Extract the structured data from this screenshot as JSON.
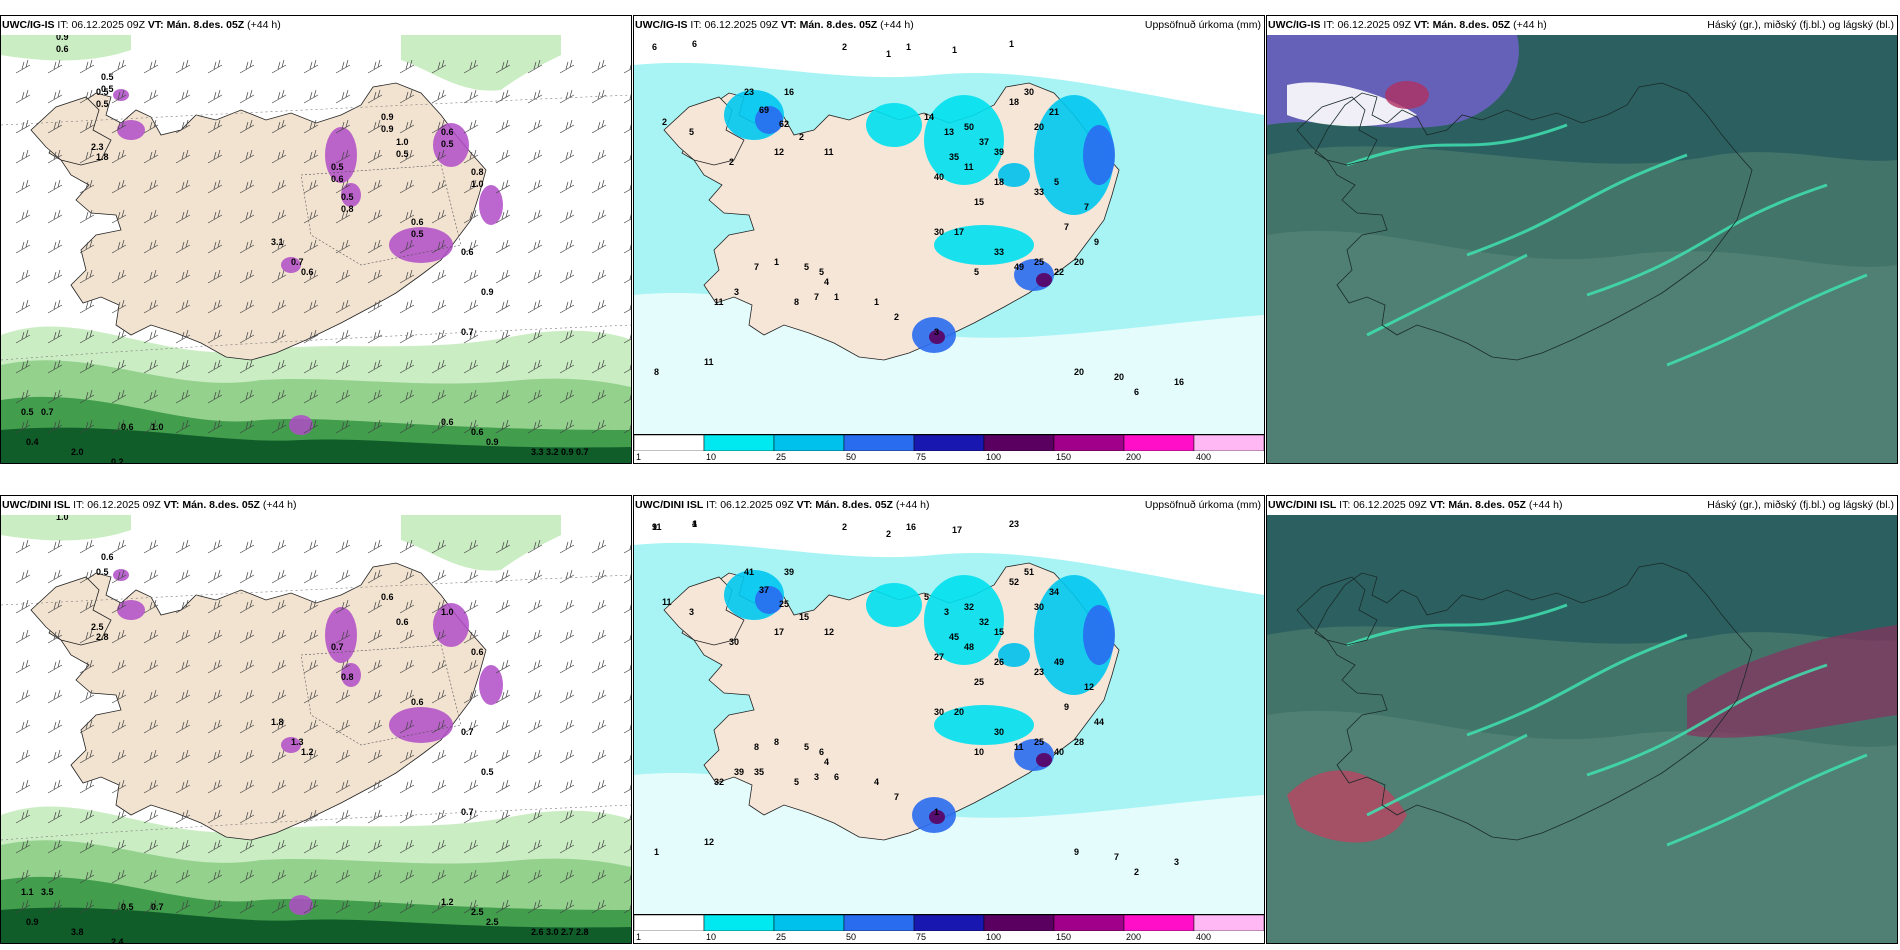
{
  "panels": {
    "ig_wind": {
      "model": "UWC/IG-IS",
      "it_label": "IT:",
      "it_value": "06.12.2025 09Z",
      "vt_label": "VT:",
      "vt_value": "Mán. 8.des. 05Z",
      "lead": "(+44 h)",
      "right_title": ""
    },
    "ig_precip": {
      "model": "UWC/IG-IS",
      "it_label": "IT:",
      "it_value": "06.12.2025 09Z",
      "vt_label": "VT:",
      "vt_value": "Mán. 8.des. 05Z",
      "lead": "(+44 h)",
      "right_title": "Uppsöfnuð úrkoma (mm)"
    },
    "ig_cloud": {
      "model": "UWC/IG-IS",
      "it_label": "IT:",
      "it_value": "06.12.2025 09Z",
      "vt_label": "VT:",
      "vt_value": "Mán. 8.des. 05Z",
      "lead": "(+44 h)",
      "right_title": "Háský (gr.), miðský (fj.bl.) og lágský (bl.)"
    },
    "dini_wind": {
      "model": "UWC/DINI ISL",
      "it_label": "IT:",
      "it_value": "06.12.2025 09Z",
      "vt_label": "VT:",
      "vt_value": "Mán. 8.des. 05Z",
      "lead": "(+44 h)",
      "right_title": ""
    },
    "dini_precip": {
      "model": "UWC/DINI ISL",
      "it_label": "IT:",
      "it_value": "06.12.2025 09Z",
      "vt_label": "VT:",
      "vt_value": "Mán. 8.des. 05Z",
      "lead": "(+44 h)",
      "right_title": "Uppsöfnuð úrkoma (mm)"
    },
    "dini_cloud": {
      "model": "UWC/DINI ISL",
      "it_label": "IT:",
      "it_value": "06.12.2025 09Z",
      "vt_label": "VT:",
      "vt_value": "Mán. 8.des. 05Z",
      "lead": "(+44 h)",
      "right_title": "Háský (gr.), miðský (fj.bl.) og lágský (bl.)"
    }
  },
  "precip_colorbar": {
    "colors": [
      "#ffffff",
      "#00e8f0",
      "#00c0ec",
      "#2a6cf0",
      "#1818b0",
      "#5a0060",
      "#a0008a",
      "#ff10c8",
      "#ffb8f4"
    ],
    "ticks": [
      "1",
      "10",
      "25",
      "50",
      "75",
      "100",
      "150",
      "200",
      "400"
    ]
  },
  "wind_labels_ig": [
    "0.9",
    "0.5",
    "0.5",
    "0.9",
    "1.0",
    "0.6",
    "0.8",
    "0.5",
    "0.5",
    "0.6",
    "0.6",
    "0.9",
    "0.7",
    "0.5",
    "0.7",
    "0.6",
    "1.0",
    "0.4",
    "2.0",
    "0.2",
    "0.6",
    "0.6",
    "0.9",
    "3.3",
    "3.2",
    "0.9",
    "0.7",
    "2.3",
    "1.8",
    "3.1",
    "0.7",
    "0.6",
    "0.6",
    "0.5",
    "0.5",
    "0.9",
    "0.5",
    "0.5",
    "1.0",
    "0.6",
    "0.8",
    "0.5"
  ],
  "wind_labels_dini": [
    "1.0",
    "0.6",
    "0.5",
    "0.6",
    "0.6",
    "1.0",
    "0.6",
    "0.7",
    "0.8",
    "0.6",
    "0.7",
    "0.5",
    "0.7",
    "1.1",
    "3.5",
    "0.5",
    "0.7",
    "0.9",
    "3.8",
    "2.4",
    "1.2",
    "2.5",
    "2.5",
    "2.6",
    "3.0",
    "2.7",
    "2.8",
    "2.5",
    "2.8",
    "1.8",
    "1.3",
    "1.2"
  ],
  "precip_labels_ig": [
    "6",
    "6",
    "2",
    "1",
    "1",
    "1",
    "1",
    "23",
    "69",
    "16",
    "62",
    "2",
    "11",
    "12",
    "2",
    "2",
    "5",
    "14",
    "13",
    "50",
    "37",
    "35",
    "40",
    "11",
    "18",
    "30",
    "21",
    "20",
    "39",
    "15",
    "30",
    "17",
    "18",
    "33",
    "5",
    "7",
    "7",
    "9",
    "20",
    "22",
    "25",
    "49",
    "33",
    "5",
    "7",
    "1",
    "5",
    "5",
    "8",
    "7",
    "4",
    "1",
    "1",
    "2",
    "3",
    "8",
    "11",
    "20",
    "20",
    "6",
    "16",
    "11",
    "3"
  ],
  "precip_labels_dini": [
    "9",
    "1",
    "2",
    "2",
    "16",
    "17",
    "23",
    "41",
    "37",
    "39",
    "25",
    "15",
    "12",
    "17",
    "30",
    "11",
    "3",
    "5",
    "3",
    "32",
    "32",
    "45",
    "27",
    "48",
    "52",
    "51",
    "34",
    "30",
    "15",
    "25",
    "30",
    "20",
    "26",
    "23",
    "49",
    "12",
    "9",
    "44",
    "28",
    "40",
    "25",
    "11",
    "30",
    "10",
    "8",
    "8",
    "5",
    "6",
    "5",
    "3",
    "4",
    "6",
    "4",
    "7",
    "1",
    "1",
    "12",
    "9",
    "7",
    "2",
    "3",
    "32",
    "39",
    "35",
    "11",
    "4"
  ]
}
